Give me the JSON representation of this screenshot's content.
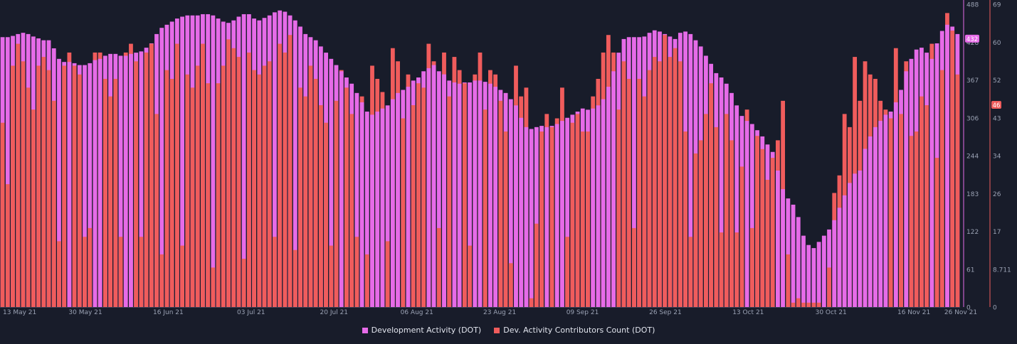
{
  "chart_data": {
    "type": "bar",
    "colors": {
      "background": "#181c2a",
      "activity": "#e66be8",
      "contributors": "#f05c5c",
      "tick_text": "#9aa1b3",
      "axis_line": "#3a3f55"
    },
    "x_tick_labels": [
      "13 May 21",
      "30 May 21",
      "16 Jun 21",
      "03 Jul 21",
      "20 Jul 21",
      "06 Aug 21",
      "23 Aug 21",
      "09 Sep 21",
      "26 Sep 21",
      "13 Oct 21",
      "30 Oct 21",
      "16 Nov 21",
      "26 Nov 21"
    ],
    "x_range": [
      "2021-05-13",
      "2021-11-26"
    ],
    "y_left": {
      "ticks": [
        "0",
        "61",
        "122",
        "183",
        "244",
        "306",
        "367",
        "428",
        "488"
      ],
      "ylim": [
        0,
        488
      ],
      "current_value": "432"
    },
    "y_right": {
      "ticks": [
        "0",
        "8.711",
        "17",
        "26",
        "34",
        "43",
        "52",
        "60",
        "69"
      ],
      "ylim": [
        0,
        69
      ],
      "current_value": "46"
    },
    "legend": [
      {
        "label": "Development Activity (DOT)",
        "color": "#e66be8"
      },
      {
        "label": "Dev. Activity Contributors Count (DOT)",
        "color": "#f05c5c"
      }
    ],
    "series": [
      {
        "name": "Development Activity (DOT)",
        "axis": "left",
        "values": [
          435,
          435,
          437,
          440,
          442,
          440,
          436,
          433,
          430,
          430,
          417,
          400,
          395,
          395,
          393,
          390,
          390,
          393,
          398,
          400,
          405,
          408,
          408,
          405,
          405,
          408,
          410,
          412,
          418,
          425,
          440,
          450,
          455,
          460,
          465,
          468,
          470,
          470,
          470,
          472,
          472,
          470,
          465,
          460,
          458,
          462,
          468,
          472,
          472,
          465,
          462,
          466,
          470,
          475,
          478,
          476,
          470,
          462,
          452,
          440,
          435,
          430,
          420,
          410,
          400,
          390,
          380,
          370,
          360,
          345,
          330,
          315,
          310,
          315,
          320,
          325,
          335,
          345,
          350,
          355,
          365,
          370,
          380,
          385,
          390,
          380,
          375,
          365,
          362,
          360,
          362,
          362,
          365,
          365,
          363,
          360,
          355,
          350,
          345,
          335,
          325,
          305,
          290,
          287,
          290,
          292,
          290,
          292,
          295,
          300,
          305,
          310,
          315,
          320,
          318,
          320,
          325,
          335,
          355,
          380,
          410,
          432,
          435,
          435,
          435,
          436,
          442,
          446,
          444,
          440,
          436,
          432,
          442,
          444,
          440,
          430,
          420,
          405,
          392,
          377,
          370,
          360,
          345,
          325,
          308,
          300,
          295,
          285,
          275,
          262,
          250,
          220,
          190,
          175,
          165,
          145,
          115,
          100,
          95,
          105,
          115,
          125,
          140,
          160,
          180,
          200,
          215,
          220,
          255,
          275,
          290,
          300,
          310,
          315,
          330,
          350,
          380,
          400,
          415,
          418,
          410,
          400,
          425,
          445,
          455,
          452,
          440
        ]
      },
      {
        "name": "Dev. Activity Contributors Count (DOT)",
        "axis": "right",
        "values": [
          42,
          28,
          55,
          60,
          56,
          50,
          45,
          55,
          57,
          54,
          47,
          15,
          55,
          58,
          55,
          53,
          16,
          18,
          58,
          58,
          52,
          48,
          52,
          16,
          58,
          60,
          56,
          16,
          58,
          60,
          44,
          12,
          54,
          52,
          60,
          14,
          53,
          50,
          55,
          60,
          51,
          9,
          51,
          55,
          61,
          59,
          57,
          11,
          58,
          54,
          53,
          55,
          56,
          16,
          60,
          58,
          62,
          13,
          50,
          48,
          55,
          52,
          46,
          42,
          14,
          47,
          54,
          50,
          44,
          16,
          48,
          12,
          55,
          52,
          49,
          15,
          59,
          56,
          43,
          53,
          46,
          51,
          50,
          60,
          56,
          18,
          58,
          48,
          57,
          54,
          51,
          14,
          53,
          58,
          45,
          54,
          53,
          47,
          40,
          10,
          55,
          48,
          50,
          2,
          19,
          40,
          44,
          41,
          43,
          50,
          16,
          42,
          44,
          40,
          40,
          48,
          52,
          58,
          62,
          58,
          45,
          56,
          52,
          18,
          52,
          48,
          54,
          57,
          56,
          62,
          57,
          59,
          56,
          40,
          16,
          35,
          38,
          44,
          51,
          41,
          17,
          44,
          38,
          17,
          32,
          45,
          18,
          39,
          36,
          29,
          34,
          38,
          47,
          12,
          1,
          2,
          1,
          1,
          1,
          1,
          0,
          9,
          26,
          30,
          44,
          41,
          57,
          47,
          56,
          53,
          52,
          47,
          45,
          43,
          59,
          44,
          56,
          39,
          40,
          48,
          46,
          60,
          34,
          54,
          67,
          63,
          53,
          45,
          26,
          35,
          42,
          41
        ]
      }
    ]
  }
}
